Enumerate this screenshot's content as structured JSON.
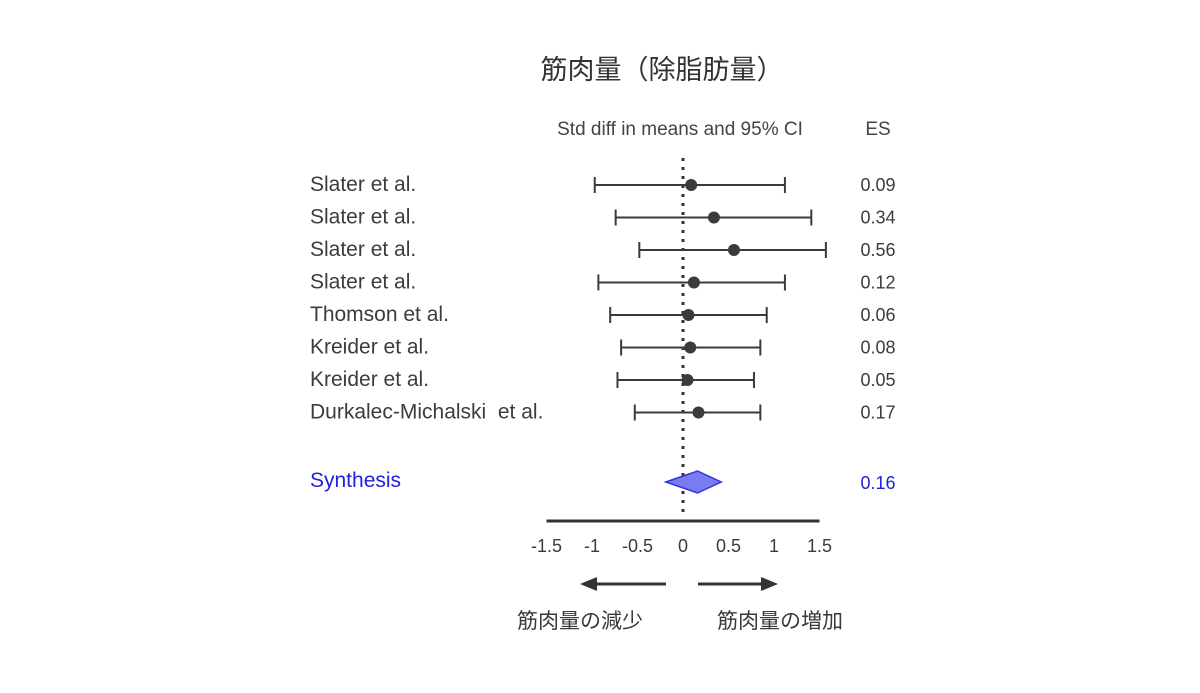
{
  "chart_data": {
    "type": "forest",
    "title": "筋肉量（除脂肪量）",
    "column_header_ci": "Std diff in means and 95% CI",
    "column_header_es": "ES",
    "xlim": [
      -1.5,
      1.5
    ],
    "x_ticks": [
      "-1.5",
      "-1",
      "-0.5",
      "0",
      "0.5",
      "1",
      "1.5"
    ],
    "reference_line": 0,
    "studies": [
      {
        "name": "Slater et al.",
        "es": 0.09,
        "es_label": "0.09",
        "ci": [
          -0.97,
          1.12
        ]
      },
      {
        "name": "Slater et al.",
        "es": 0.34,
        "es_label": "0.34",
        "ci": [
          -0.74,
          1.41
        ]
      },
      {
        "name": "Slater et al.",
        "es": 0.56,
        "es_label": "0.56",
        "ci": [
          -0.48,
          1.57
        ]
      },
      {
        "name": "Slater et al.",
        "es": 0.12,
        "es_label": "0.12",
        "ci": [
          -0.93,
          1.12
        ]
      },
      {
        "name": "Thomson et al.",
        "es": 0.06,
        "es_label": "0.06",
        "ci": [
          -0.8,
          0.92
        ]
      },
      {
        "name": "Kreider et al.",
        "es": 0.08,
        "es_label": "0.08",
        "ci": [
          -0.68,
          0.85
        ]
      },
      {
        "name": "Kreider et al.",
        "es": 0.05,
        "es_label": "0.05",
        "ci": [
          -0.72,
          0.78
        ]
      },
      {
        "name": "Durkalec-Michalski  et al.",
        "es": 0.17,
        "es_label": "0.17",
        "ci": [
          -0.53,
          0.85
        ]
      }
    ],
    "synthesis": {
      "name": "Synthesis",
      "es": 0.16,
      "es_label": "0.16",
      "ci": [
        -0.19,
        0.42
      ]
    },
    "direction_left": "筋肉量の減少",
    "direction_right": "筋肉量の増加",
    "colors": {
      "study": "#3b3b3b",
      "synthesis_text": "#2020e0",
      "synthesis_fill": "#7b7bf0",
      "synthesis_stroke": "#3333dd"
    }
  }
}
